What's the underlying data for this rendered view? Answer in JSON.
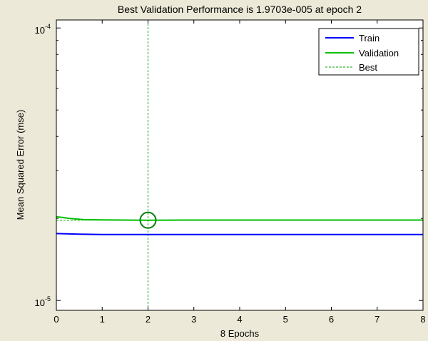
{
  "chart_data": {
    "type": "line",
    "title": "Best Validation Performance is 1.9703e-005 at epoch 2",
    "xlabel": "8 Epochs",
    "ylabel": "Mean Squared Error  (mse)",
    "xlim": [
      0,
      8
    ],
    "ylim": [
      9.2e-06,
      0.000107
    ],
    "yscale": "log",
    "x_ticks": [
      0,
      1,
      2,
      3,
      4,
      5,
      6,
      7,
      8
    ],
    "x_tick_labels": [
      "0",
      "1",
      "2",
      "3",
      "4",
      "5",
      "6",
      "7",
      "8"
    ],
    "y_ticks": [
      {
        "value": 1e-05,
        "base": "10",
        "exp": "-5"
      },
      {
        "value": 0.0001,
        "base": "10",
        "exp": "-4"
      }
    ],
    "grid": false,
    "legend_position": "top-right",
    "series": [
      {
        "name": "Train",
        "color": "#0000FF",
        "style": "solid",
        "x": [
          0,
          0.5,
          1,
          2,
          3,
          4,
          5,
          6,
          7,
          8
        ],
        "y": [
          1.76e-05,
          1.75e-05,
          1.745e-05,
          1.745e-05,
          1.745e-05,
          1.745e-05,
          1.745e-05,
          1.745e-05,
          1.745e-05,
          1.745e-05
        ]
      },
      {
        "name": "Validation",
        "color": "#00C000",
        "style": "solid",
        "x": [
          0,
          0.3,
          0.6,
          1,
          2,
          3,
          4,
          5,
          6,
          7,
          8
        ],
        "y": [
          2.03e-05,
          2e-05,
          1.98e-05,
          1.975e-05,
          1.9703e-05,
          1.972e-05,
          1.972e-05,
          1.972e-05,
          1.972e-05,
          1.972e-05,
          1.972e-05
        ]
      },
      {
        "name": "Best",
        "color": "#00A000",
        "style": "dotted",
        "best_epoch": 2,
        "best_value": 1.9703e-05
      }
    ]
  }
}
